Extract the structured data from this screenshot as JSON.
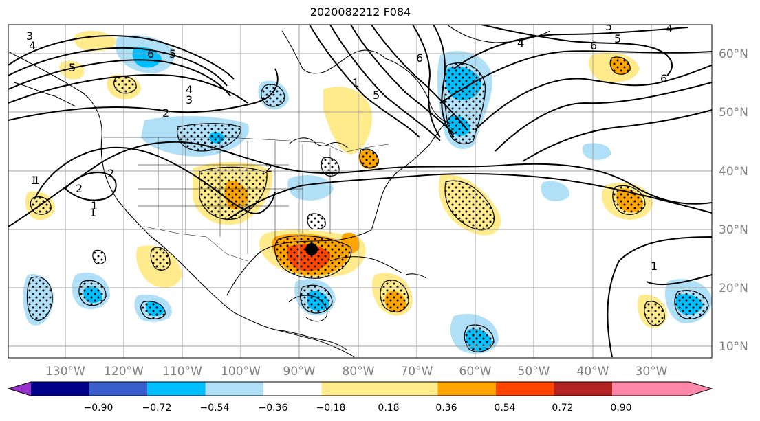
{
  "title": "2020082212 F084",
  "lon_labels": [
    "130°W",
    "120°W",
    "110°W",
    "100°W",
    "90°W",
    "80°W",
    "70°W",
    "60°W",
    "50°W",
    "40°W",
    "30°W"
  ],
  "lat_labels": [
    "60°N",
    "50°N",
    "40°N",
    "30°N",
    "20°N",
    "10°N"
  ],
  "colorbar": {
    "ticks": [
      "−0.90",
      "−0.72",
      "−0.54",
      "−0.36",
      "−0.18",
      "0.18",
      "0.36",
      "0.54",
      "0.72",
      "0.90"
    ],
    "colors": [
      "#9932cc",
      "#00008b",
      "#3a5fcd",
      "#00bfff",
      "#b0e0f8",
      "#ffffff",
      "#ffeb8c",
      "#ffa500",
      "#ff4500",
      "#b22222",
      "#ff88aa"
    ]
  },
  "palette": {
    "pos1": "#ffeb8c",
    "pos2": "#ffa500",
    "pos3": "#ff4500",
    "neg1": "#b0e0f8",
    "neg2": "#00bfff",
    "marker": "#000000"
  },
  "contour_labels": [
    "3",
    "4",
    "5",
    "6",
    "5",
    "4",
    "3",
    "2",
    "2",
    "1",
    "1",
    "1",
    "2",
    "2",
    "1",
    "5",
    "6",
    "4",
    "6",
    "5",
    "4",
    "6",
    "5",
    "1",
    "1"
  ]
}
